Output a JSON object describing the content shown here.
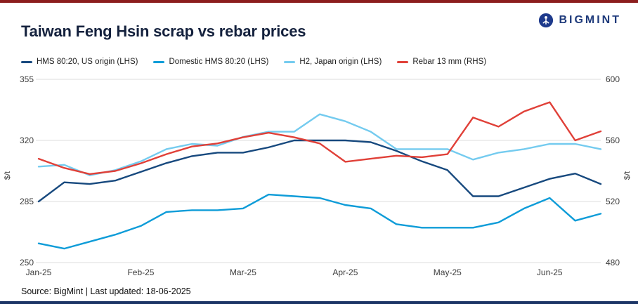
{
  "page": {
    "title": "Taiwan Feng Hsin scrap vs rebar prices",
    "brand": "BIGMINT",
    "source": "Source: BigMint | Last updated: 18-06-2025",
    "colors": {
      "top_bar": "#8C1E1E",
      "bottom_bar": "#1C3566",
      "title_text": "#14213D",
      "gridline": "#DEDEDE",
      "axis_text": "#3C3C3C"
    }
  },
  "chart_data": {
    "type": "line",
    "title": "Taiwan Feng Hsin scrap vs rebar prices",
    "grid": true,
    "legend_position": "top",
    "x_labels": [
      "Jan-25",
      "Feb-25",
      "Mar-25",
      "Apr-25",
      "May-25",
      "Jun-25"
    ],
    "x_tick_indices": [
      0,
      4,
      8,
      12,
      16,
      20
    ],
    "left_axis": {
      "label": "$/t",
      "min": 250,
      "max": 355,
      "ticks": [
        355,
        320,
        285,
        250
      ]
    },
    "right_axis": {
      "label": "$/t",
      "min": 480,
      "max": 600,
      "ticks": [
        600,
        560,
        520,
        480
      ]
    },
    "series": [
      {
        "name": "HMS 80:20, US origin (LHS)",
        "color": "#17497E",
        "axis": "left",
        "values": [
          285,
          296,
          295,
          297,
          302,
          307,
          311,
          313,
          313,
          316,
          320,
          320,
          320,
          319,
          314,
          308,
          303,
          288,
          288,
          293,
          298,
          301,
          295
        ]
      },
      {
        "name": "Domestic HMS 80:20 (LHS)",
        "color": "#0E9CD8",
        "axis": "left",
        "values": [
          261,
          258,
          262,
          266,
          271,
          279,
          280,
          280,
          281,
          289,
          288,
          287,
          283,
          281,
          272,
          270,
          270,
          270,
          273,
          281,
          287,
          274,
          278
        ]
      },
      {
        "name": "H2, Japan origin (LHS)",
        "color": "#74CBEF",
        "axis": "left",
        "values": [
          305,
          306,
          300,
          303,
          308,
          315,
          318,
          317,
          322,
          325,
          325,
          335,
          331,
          325,
          315,
          315,
          315,
          309,
          313,
          315,
          318,
          318,
          315
        ]
      },
      {
        "name": "Rebar 13 mm (RHS)",
        "color": "#E04038",
        "axis": "right",
        "values": [
          548,
          542,
          538,
          540,
          545,
          551,
          556,
          558,
          562,
          565,
          562,
          558,
          546,
          548,
          550,
          549,
          551,
          575,
          569,
          579,
          585,
          560,
          566
        ]
      }
    ]
  }
}
